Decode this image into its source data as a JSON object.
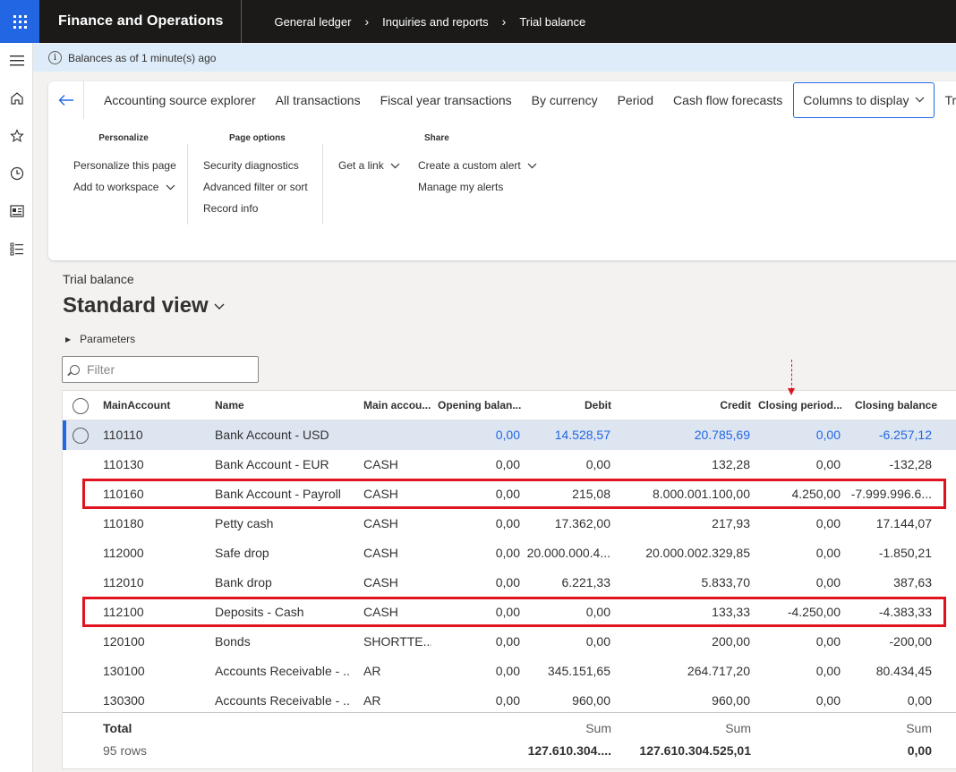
{
  "app": {
    "name": "Finance and Operations",
    "breadcrumbs": [
      "General ledger",
      "Inquiries and reports",
      "Trial balance"
    ],
    "separator": ">"
  },
  "notice": {
    "icon": "info-icon",
    "text": "Balances as of 1 minute(s) ago"
  },
  "rail": {
    "icons": [
      "hamburger-icon",
      "home-icon",
      "star-icon",
      "clock-icon",
      "workspace-icon",
      "modules-list-icon"
    ]
  },
  "actionpane": {
    "tabs": [
      "Accounting source explorer",
      "All transactions",
      "Fiscal year transactions",
      "By currency",
      "Period",
      "Cash flow forecasts",
      "Columns to display",
      "Trial ba"
    ],
    "active_tab": "Columns to display",
    "groups": {
      "personalize": {
        "title": "Personalize",
        "items": [
          "Personalize this page",
          "Add to workspace"
        ]
      },
      "page_options": {
        "title": "Page options",
        "items": [
          "Security diagnostics",
          "Advanced filter or sort",
          "Record info"
        ]
      },
      "get_link": {
        "items": [
          "Get a link"
        ]
      },
      "share": {
        "title": "Share",
        "items": [
          "Create a custom alert",
          "Manage my alerts"
        ]
      }
    }
  },
  "page": {
    "subtitle": "Trial balance",
    "title": "Standard view",
    "parameters_label": "Parameters",
    "filter_placeholder": "Filter"
  },
  "grid": {
    "columns": [
      "MainAccount",
      "Name",
      "Main accou...",
      "Opening balan...",
      "Debit",
      "Credit",
      "Closing period...",
      "Closing balance"
    ],
    "rows": [
      [
        "110110",
        "Bank Account - USD",
        "",
        "0,00",
        "14.528,57",
        "20.785,69",
        "0,00",
        "-6.257,12"
      ],
      [
        "110130",
        "Bank Account - EUR",
        "CASH",
        "0,00",
        "0,00",
        "132,28",
        "0,00",
        "-132,28"
      ],
      [
        "110160",
        "Bank Account - Payroll",
        "CASH",
        "0,00",
        "215,08",
        "8.000.001.100,00",
        "4.250,00",
        "-7.999.996.6..."
      ],
      [
        "110180",
        "Petty cash",
        "CASH",
        "0,00",
        "17.362,00",
        "217,93",
        "0,00",
        "17.144,07"
      ],
      [
        "112000",
        "Safe drop",
        "CASH",
        "0,00",
        "20.000.000.4...",
        "20.000.002.329,85",
        "0,00",
        "-1.850,21"
      ],
      [
        "112010",
        "Bank drop",
        "CASH",
        "0,00",
        "6.221,33",
        "5.833,70",
        "0,00",
        "387,63"
      ],
      [
        "112100",
        "Deposits - Cash",
        "CASH",
        "0,00",
        "0,00",
        "133,33",
        "-4.250,00",
        "-4.383,33"
      ],
      [
        "120100",
        "Bonds",
        "SHORTTE...",
        "0,00",
        "0,00",
        "200,00",
        "0,00",
        "-200,00"
      ],
      [
        "130100",
        "Accounts Receivable - ...",
        "AR",
        "0,00",
        "345.151,65",
        "264.717,20",
        "0,00",
        "80.434,45"
      ],
      [
        "130300",
        "Accounts Receivable - ...",
        "AR",
        "0,00",
        "960,00",
        "960,00",
        "0,00",
        "0,00"
      ]
    ],
    "totals": {
      "label": "Total",
      "rows_count": "95 rows",
      "sum_label": "Sum",
      "debit": "127.610.304....",
      "credit": "127.610.304.525,01",
      "closing_balance": "0,00"
    }
  },
  "colors": {
    "accent": "#2266e3",
    "highlight": "#e0141e",
    "topbar": "#1b1a19",
    "selected_row": "#dde5f1"
  }
}
